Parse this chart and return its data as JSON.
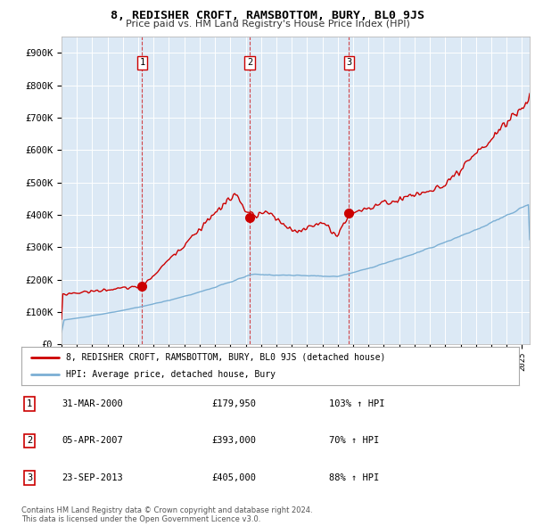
{
  "title": "8, REDISHER CROFT, RAMSBOTTOM, BURY, BL0 9JS",
  "subtitle": "Price paid vs. HM Land Registry's House Price Index (HPI)",
  "bg_color": "#dce9f5",
  "red_line_color": "#cc0000",
  "blue_line_color": "#7bafd4",
  "ylabel_ticks": [
    "£0",
    "£100K",
    "£200K",
    "£300K",
    "£400K",
    "£500K",
    "£600K",
    "£700K",
    "£800K",
    "£900K"
  ],
  "ylabel_values": [
    0,
    100000,
    200000,
    300000,
    400000,
    500000,
    600000,
    700000,
    800000,
    900000
  ],
  "ylim": [
    0,
    950000
  ],
  "xlim_start": 1995.0,
  "xlim_end": 2025.5,
  "sale_dates": [
    2000.25,
    2007.27,
    2013.73
  ],
  "sale_prices": [
    179950,
    393000,
    405000
  ],
  "sale_labels": [
    "1",
    "2",
    "3"
  ],
  "legend_red": "8, REDISHER CROFT, RAMSBOTTOM, BURY, BL0 9JS (detached house)",
  "legend_blue": "HPI: Average price, detached house, Bury",
  "table_rows": [
    {
      "num": "1",
      "date": "31-MAR-2000",
      "price": "£179,950",
      "hpi": "103% ↑ HPI"
    },
    {
      "num": "2",
      "date": "05-APR-2007",
      "price": "£393,000",
      "hpi": "70% ↑ HPI"
    },
    {
      "num": "3",
      "date": "23-SEP-2013",
      "price": "£405,000",
      "hpi": "88% ↑ HPI"
    }
  ],
  "footnote1": "Contains HM Land Registry data © Crown copyright and database right 2024.",
  "footnote2": "This data is licensed under the Open Government Licence v3.0."
}
